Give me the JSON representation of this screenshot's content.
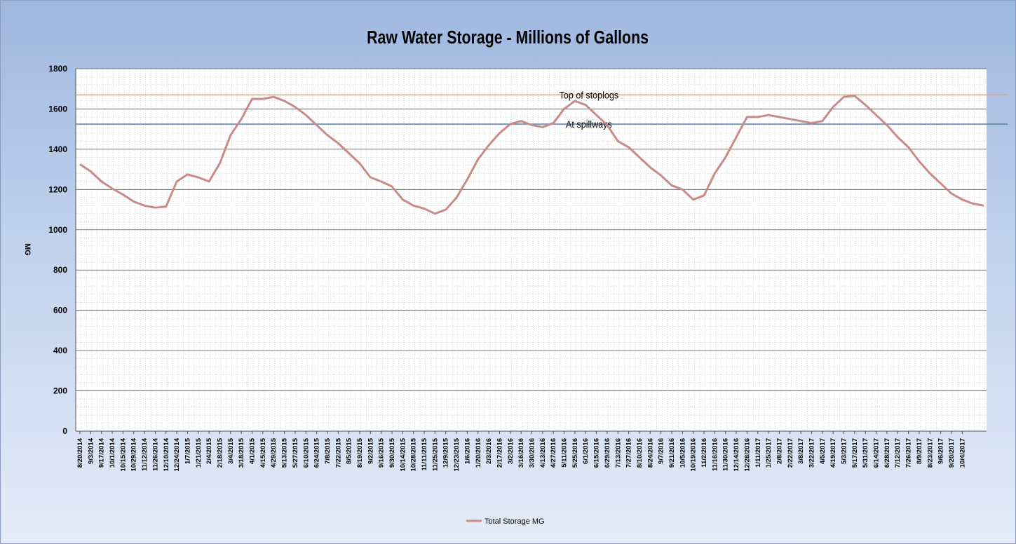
{
  "chart_data": {
    "type": "line",
    "title": "Raw Water Storage - Millions of Gallons",
    "y_label": "MG",
    "categories": [
      "8/20/2014",
      "9/3/2014",
      "9/17/2014",
      "10/1/2014",
      "10/15/2014",
      "10/29/2014",
      "11/12/2014",
      "11/26/2014",
      "12/10/2014",
      "12/24/2014",
      "1/7/2015",
      "1/21/2015",
      "2/4/2015",
      "2/18/2015",
      "3/4/2015",
      "3/18/2015",
      "4/1/2015",
      "4/15/2015",
      "4/29/2015",
      "5/13/2015",
      "5/27/2015",
      "6/10/2015",
      "6/24/2015",
      "7/8/2015",
      "7/22/2015",
      "8/5/2015",
      "8/19/2015",
      "9/2/2015",
      "9/16/2015",
      "9/30/2015",
      "10/14/2015",
      "10/28/2015",
      "11/11/2015",
      "11/25/2015",
      "12/9/2015",
      "12/23/2015",
      "1/6/2016",
      "1/20/2016",
      "2/3/2016",
      "2/17/2016",
      "3/2/2016",
      "3/16/2016",
      "3/30/2016",
      "4/13/2016",
      "4/27/2016",
      "5/11/2016",
      "5/25/2016",
      "6/1/2016",
      "6/15/2016",
      "6/29/2016",
      "7/13/2016",
      "7/27/2016",
      "8/10/2016",
      "8/24/2016",
      "9/7/2016",
      "9/21/2016",
      "10/5/2016",
      "10/19/2016",
      "11/2/2016",
      "11/16/2016",
      "11/30/2016",
      "12/14/2016",
      "12/28/2016",
      "1/11/2017",
      "1/25/2017",
      "2/8/2017",
      "2/22/2017",
      "3/8/2017",
      "3/22/2017",
      "4/5/2017",
      "4/19/2017",
      "5/3/2017",
      "5/17/2017",
      "5/31/2017",
      "6/14/2017",
      "6/28/2017",
      "7/12/2017",
      "7/26/2017",
      "8/9/2017",
      "8/23/2017",
      "9/6/2017",
      "9/20/2017",
      "10/4/2017",
      null,
      null
    ],
    "series": [
      {
        "name": "Total Storage MG",
        "color": "#c98a8a",
        "values": [
          1325,
          1290,
          1240,
          1205,
          1175,
          1140,
          1120,
          1110,
          1115,
          1240,
          1275,
          1260,
          1240,
          1330,
          1470,
          1550,
          1650,
          1650,
          1660,
          1640,
          1610,
          1570,
          1520,
          1470,
          1430,
          1380,
          1330,
          1260,
          1240,
          1215,
          1150,
          1120,
          1105,
          1080,
          1100,
          1160,
          1250,
          1350,
          1420,
          1480,
          1525,
          1540,
          1520,
          1510,
          1530,
          1600,
          1640,
          1620,
          1570,
          1520,
          1440,
          1410,
          1360,
          1310,
          1270,
          1220,
          1200,
          1150,
          1170,
          1280,
          1360,
          1460,
          1560,
          1560,
          1570,
          1560,
          1550,
          1540,
          1530,
          1540,
          1610,
          1660,
          1665,
          1620,
          1570,
          1520,
          1460,
          1410,
          1340,
          1280,
          1230,
          1180,
          1150,
          1130,
          1120
        ]
      }
    ],
    "reference_lines": [
      {
        "label": "Top of stoplogs",
        "value": 1670,
        "color": "#e8a060"
      },
      {
        "label": "At spillways",
        "value": 1525,
        "color": "#5a7fa8"
      }
    ],
    "ylim": [
      0,
      1800
    ],
    "yticks": [
      0,
      200,
      400,
      600,
      800,
      1000,
      1200,
      1400,
      1600,
      1800
    ],
    "grid": true,
    "legend": "bottom"
  }
}
